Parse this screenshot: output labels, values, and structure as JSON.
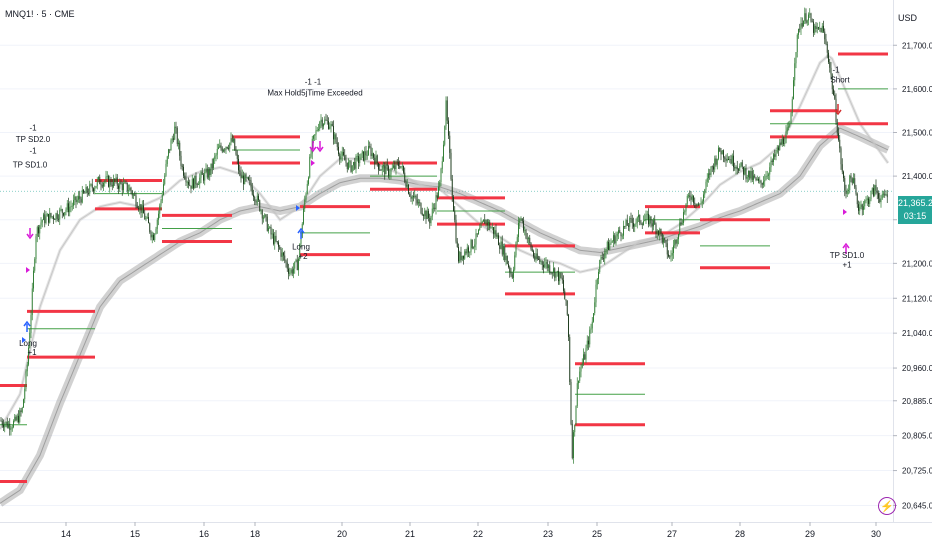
{
  "header": {
    "symbol": "MNQ1! · 5 · CME"
  },
  "price_axis": {
    "currency": "USD"
  },
  "current_price": {
    "value": "21,365.25",
    "countdown": "03:15",
    "color": "#26a69a"
  },
  "icons": {
    "replay": "lightning-bolt-icon"
  },
  "colors": {
    "candle_up": "#2e7d32",
    "candle_down": "#1b3a1b",
    "level_red": "#f23645",
    "level_green": "#43a047",
    "marker": "#d81bd8",
    "arrow_blue": "#2962ff"
  },
  "chart_data": {
    "type": "candlestick",
    "x_tick_labels": [
      "14",
      "15",
      "16",
      "18",
      "20",
      "21",
      "22",
      "23",
      "25",
      "27",
      "28",
      "29",
      "30"
    ],
    "y_tick_labels": [
      21700,
      21600,
      21500,
      21400,
      21300,
      21200,
      21120,
      21040,
      20960,
      20885,
      20805,
      20725,
      20645
    ],
    "y_tick_display": [
      "21,700.00",
      "21,600.00",
      "21,500.00",
      "21,400.00",
      "21,300.00",
      "21,200.00",
      "21,120.00",
      "21,040.00",
      "20,960.00",
      "20,885.00",
      "20,805.00",
      "20,725.00",
      "20,645.00"
    ],
    "ylim": [
      20630,
      21790
    ],
    "price_path": [
      [
        0,
        20840
      ],
      [
        8,
        20830
      ],
      [
        15,
        20835
      ],
      [
        22,
        20860
      ],
      [
        27,
        20960
      ],
      [
        32,
        21120
      ],
      [
        36,
        21270
      ],
      [
        42,
        21300
      ],
      [
        55,
        21310
      ],
      [
        70,
        21330
      ],
      [
        85,
        21360
      ],
      [
        100,
        21390
      ],
      [
        115,
        21385
      ],
      [
        130,
        21370
      ],
      [
        140,
        21330
      ],
      [
        148,
        21290
      ],
      [
        153,
        21260
      ],
      [
        160,
        21330
      ],
      [
        168,
        21450
      ],
      [
        175,
        21510
      ],
      [
        182,
        21420
      ],
      [
        190,
        21380
      ],
      [
        200,
        21395
      ],
      [
        210,
        21410
      ],
      [
        218,
        21460
      ],
      [
        225,
        21470
      ],
      [
        233,
        21480
      ],
      [
        240,
        21400
      ],
      [
        250,
        21380
      ],
      [
        260,
        21330
      ],
      [
        270,
        21270
      ],
      [
        280,
        21230
      ],
      [
        290,
        21180
      ],
      [
        298,
        21200
      ],
      [
        305,
        21350
      ],
      [
        312,
        21470
      ],
      [
        320,
        21530
      ],
      [
        330,
        21520
      ],
      [
        340,
        21450
      ],
      [
        350,
        21420
      ],
      [
        360,
        21440
      ],
      [
        370,
        21460
      ],
      [
        380,
        21420
      ],
      [
        390,
        21410
      ],
      [
        400,
        21430
      ],
      [
        410,
        21360
      ],
      [
        420,
        21330
      ],
      [
        430,
        21300
      ],
      [
        440,
        21380
      ],
      [
        446,
        21560
      ],
      [
        452,
        21370
      ],
      [
        458,
        21210
      ],
      [
        466,
        21230
      ],
      [
        475,
        21250
      ],
      [
        485,
        21300
      ],
      [
        495,
        21270
      ],
      [
        505,
        21220
      ],
      [
        512,
        21170
      ],
      [
        520,
        21310
      ],
      [
        527,
        21260
      ],
      [
        535,
        21210
      ],
      [
        545,
        21200
      ],
      [
        555,
        21180
      ],
      [
        562,
        21160
      ],
      [
        568,
        21070
      ],
      [
        572,
        20760
      ],
      [
        578,
        20940
      ],
      [
        585,
        20990
      ],
      [
        592,
        21060
      ],
      [
        598,
        21190
      ],
      [
        605,
        21230
      ],
      [
        615,
        21260
      ],
      [
        628,
        21290
      ],
      [
        640,
        21300
      ],
      [
        650,
        21300
      ],
      [
        660,
        21270
      ],
      [
        670,
        21210
      ],
      [
        680,
        21290
      ],
      [
        690,
        21360
      ],
      [
        700,
        21330
      ],
      [
        710,
        21410
      ],
      [
        720,
        21460
      ],
      [
        730,
        21440
      ],
      [
        740,
        21420
      ],
      [
        750,
        21400
      ],
      [
        760,
        21380
      ],
      [
        770,
        21420
      ],
      [
        780,
        21470
      ],
      [
        790,
        21510
      ],
      [
        795,
        21680
      ],
      [
        800,
        21750
      ],
      [
        808,
        21770
      ],
      [
        815,
        21730
      ],
      [
        822,
        21740
      ],
      [
        828,
        21680
      ],
      [
        835,
        21560
      ],
      [
        840,
        21450
      ],
      [
        845,
        21360
      ],
      [
        852,
        21400
      ],
      [
        858,
        21330
      ],
      [
        866,
        21340
      ],
      [
        875,
        21370
      ],
      [
        882,
        21345
      ],
      [
        888,
        21365
      ]
    ],
    "moving_averages": [
      {
        "name": "slow",
        "color": "#999999",
        "points": [
          [
            0,
            20650
          ],
          [
            20,
            20680
          ],
          [
            40,
            20760
          ],
          [
            60,
            20880
          ],
          [
            80,
            20990
          ],
          [
            100,
            21100
          ],
          [
            120,
            21160
          ],
          [
            140,
            21190
          ],
          [
            160,
            21220
          ],
          [
            180,
            21250
          ],
          [
            200,
            21270
          ],
          [
            220,
            21300
          ],
          [
            240,
            21320
          ],
          [
            260,
            21330
          ],
          [
            280,
            21320
          ],
          [
            300,
            21330
          ],
          [
            320,
            21360
          ],
          [
            340,
            21385
          ],
          [
            360,
            21395
          ],
          [
            380,
            21395
          ],
          [
            400,
            21390
          ],
          [
            420,
            21380
          ],
          [
            440,
            21375
          ],
          [
            460,
            21360
          ],
          [
            480,
            21340
          ],
          [
            500,
            21320
          ],
          [
            520,
            21295
          ],
          [
            540,
            21270
          ],
          [
            560,
            21250
          ],
          [
            580,
            21230
          ],
          [
            600,
            21225
          ],
          [
            620,
            21235
          ],
          [
            640,
            21245
          ],
          [
            660,
            21255
          ],
          [
            680,
            21270
          ],
          [
            700,
            21285
          ],
          [
            720,
            21305
          ],
          [
            740,
            21320
          ],
          [
            760,
            21340
          ],
          [
            780,
            21360
          ],
          [
            800,
            21400
          ],
          [
            820,
            21470
          ],
          [
            840,
            21510
          ],
          [
            860,
            21490
          ],
          [
            888,
            21460
          ]
        ]
      },
      {
        "name": "fast",
        "color": "#c4c4c4",
        "points": [
          [
            0,
            20820
          ],
          [
            20,
            20900
          ],
          [
            40,
            21100
          ],
          [
            60,
            21230
          ],
          [
            80,
            21300
          ],
          [
            100,
            21330
          ],
          [
            120,
            21340
          ],
          [
            140,
            21330
          ],
          [
            160,
            21350
          ],
          [
            180,
            21390
          ],
          [
            200,
            21410
          ],
          [
            220,
            21420
          ],
          [
            240,
            21405
          ],
          [
            260,
            21360
          ],
          [
            280,
            21300
          ],
          [
            300,
            21330
          ],
          [
            320,
            21400
          ],
          [
            340,
            21440
          ],
          [
            360,
            21440
          ],
          [
            380,
            21425
          ],
          [
            400,
            21405
          ],
          [
            420,
            21380
          ],
          [
            440,
            21370
          ],
          [
            460,
            21330
          ],
          [
            480,
            21290
          ],
          [
            500,
            21260
          ],
          [
            520,
            21230
          ],
          [
            540,
            21210
          ],
          [
            560,
            21200
          ],
          [
            580,
            21180
          ],
          [
            600,
            21190
          ],
          [
            620,
            21220
          ],
          [
            640,
            21250
          ],
          [
            660,
            21260
          ],
          [
            680,
            21290
          ],
          [
            700,
            21330
          ],
          [
            720,
            21380
          ],
          [
            740,
            21410
          ],
          [
            760,
            21430
          ],
          [
            780,
            21470
          ],
          [
            800,
            21560
          ],
          [
            820,
            21660
          ],
          [
            830,
            21680
          ],
          [
            845,
            21600
          ],
          [
            860,
            21520
          ],
          [
            888,
            21430
          ]
        ]
      }
    ],
    "level_lines": [
      {
        "x0": 0,
        "x1": 27,
        "price": 20920,
        "color": "red"
      },
      {
        "x0": 0,
        "x1": 27,
        "price": 20700,
        "color": "red"
      },
      {
        "x0": 0,
        "x1": 27,
        "price": 20830,
        "color": "green"
      },
      {
        "x0": 27,
        "x1": 95,
        "price": 21090,
        "color": "red"
      },
      {
        "x0": 27,
        "x1": 95,
        "price": 20985,
        "color": "red"
      },
      {
        "x0": 27,
        "x1": 95,
        "price": 21050,
        "color": "green"
      },
      {
        "x0": 95,
        "x1": 162,
        "price": 21390,
        "color": "red"
      },
      {
        "x0": 95,
        "x1": 162,
        "price": 21325,
        "color": "red"
      },
      {
        "x0": 95,
        "x1": 162,
        "price": 21360,
        "color": "green"
      },
      {
        "x0": 162,
        "x1": 232,
        "price": 21310,
        "color": "red"
      },
      {
        "x0": 162,
        "x1": 232,
        "price": 21250,
        "color": "red"
      },
      {
        "x0": 162,
        "x1": 232,
        "price": 21280,
        "color": "green"
      },
      {
        "x0": 232,
        "x1": 300,
        "price": 21490,
        "color": "red"
      },
      {
        "x0": 232,
        "x1": 300,
        "price": 21430,
        "color": "red"
      },
      {
        "x0": 232,
        "x1": 300,
        "price": 21460,
        "color": "green"
      },
      {
        "x0": 300,
        "x1": 370,
        "price": 21330,
        "color": "red"
      },
      {
        "x0": 300,
        "x1": 370,
        "price": 21220,
        "color": "red"
      },
      {
        "x0": 300,
        "x1": 370,
        "price": 21270,
        "color": "green"
      },
      {
        "x0": 370,
        "x1": 437,
        "price": 21430,
        "color": "red"
      },
      {
        "x0": 370,
        "x1": 437,
        "price": 21370,
        "color": "red"
      },
      {
        "x0": 370,
        "x1": 437,
        "price": 21400,
        "color": "green"
      },
      {
        "x0": 437,
        "x1": 505,
        "price": 21350,
        "color": "red"
      },
      {
        "x0": 437,
        "x1": 505,
        "price": 21290,
        "color": "red"
      },
      {
        "x0": 437,
        "x1": 505,
        "price": 21320,
        "color": "green"
      },
      {
        "x0": 505,
        "x1": 575,
        "price": 21240,
        "color": "red"
      },
      {
        "x0": 505,
        "x1": 575,
        "price": 21130,
        "color": "red"
      },
      {
        "x0": 505,
        "x1": 575,
        "price": 21180,
        "color": "green"
      },
      {
        "x0": 575,
        "x1": 645,
        "price": 20970,
        "color": "red"
      },
      {
        "x0": 575,
        "x1": 645,
        "price": 20830,
        "color": "red"
      },
      {
        "x0": 575,
        "x1": 645,
        "price": 20900,
        "color": "green"
      },
      {
        "x0": 645,
        "x1": 700,
        "price": 21330,
        "color": "red"
      },
      {
        "x0": 645,
        "x1": 700,
        "price": 21270,
        "color": "red"
      },
      {
        "x0": 645,
        "x1": 700,
        "price": 21300,
        "color": "green"
      },
      {
        "x0": 700,
        "x1": 770,
        "price": 21300,
        "color": "red"
      },
      {
        "x0": 700,
        "x1": 770,
        "price": 21190,
        "color": "red"
      },
      {
        "x0": 700,
        "x1": 770,
        "price": 21240,
        "color": "green"
      },
      {
        "x0": 770,
        "x1": 838,
        "price": 21550,
        "color": "red"
      },
      {
        "x0": 770,
        "x1": 838,
        "price": 21490,
        "color": "red"
      },
      {
        "x0": 770,
        "x1": 838,
        "price": 21520,
        "color": "green"
      },
      {
        "x0": 838,
        "x1": 888,
        "price": 21680,
        "color": "red"
      },
      {
        "x0": 838,
        "x1": 888,
        "price": 21520,
        "color": "red"
      },
      {
        "x0": 838,
        "x1": 888,
        "price": 21600,
        "color": "green"
      }
    ],
    "annotations": [
      {
        "text": "-1",
        "x": 33,
        "price": 21505,
        "anchor": "middle"
      },
      {
        "text": "TP SD2.0",
        "x": 33,
        "price": 21478,
        "anchor": "middle"
      },
      {
        "text": "-1",
        "x": 33,
        "price": 21452,
        "anchor": "middle"
      },
      {
        "text": "TP SD1.0",
        "x": 30,
        "price": 21420,
        "anchor": "middle"
      },
      {
        "text": "Long",
        "x": 28,
        "price": 21010,
        "anchor": "middle"
      },
      {
        "text": "+1",
        "x": 32,
        "price": 20990,
        "anchor": "middle"
      },
      {
        "text": "-1 -1",
        "x": 313,
        "price": 21610,
        "anchor": "middle"
      },
      {
        "text": "Max Hold5jTime Exceeded",
        "x": 315,
        "price": 21585,
        "anchor": "middle"
      },
      {
        "text": "Long",
        "x": 301,
        "price": 21232,
        "anchor": "middle"
      },
      {
        "text": "+2",
        "x": 303,
        "price": 21210,
        "anchor": "middle"
      },
      {
        "text": "Short",
        "x": 840,
        "price": 21615,
        "anchor": "middle"
      },
      {
        "text": "-1",
        "x": 836,
        "price": 21638,
        "anchor": "middle"
      },
      {
        "text": "TP SD1.0",
        "x": 847,
        "price": 21212,
        "anchor": "middle"
      },
      {
        "text": "+1",
        "x": 847,
        "price": 21190,
        "anchor": "middle"
      }
    ]
  }
}
